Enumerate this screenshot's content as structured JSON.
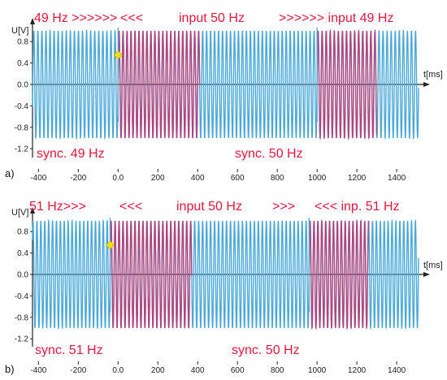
{
  "colors": {
    "wave": "#4aa8d8",
    "wave_highlight": "#b0457e",
    "annotation": "#e8173c",
    "marker": "#f3e01a",
    "axis": "#222222"
  },
  "chart_data": [
    {
      "type": "line",
      "panel_label": "a)",
      "xlabel": "t[ms]",
      "ylabel": "U[V]",
      "xlim": [
        -430,
        1510
      ],
      "ylim": [
        -1.3,
        1.12
      ],
      "xticks": [
        -400,
        -200,
        0.0,
        200,
        400,
        600,
        800,
        1000,
        1200,
        1400
      ],
      "xtick_labels": [
        "-400",
        "-200",
        "0.0",
        "200",
        "400",
        "600",
        "800",
        "1000",
        "1200",
        "1400"
      ],
      "yticks": [
        0.8,
        0.4,
        0.0,
        -0.4,
        -0.8,
        -1.2
      ],
      "ytick_labels": [
        "0.8",
        "0.4",
        "0.0",
        "-0.4",
        "-0.8",
        "-1.2"
      ],
      "series": [
        {
          "amplitude": 1.0,
          "segments": [
            {
              "t_start": -430,
              "t_end": 0,
              "frequency_hz": 49,
              "phase_ref_ms": 0
            },
            {
              "t_start": 0,
              "t_end": 1000,
              "frequency_hz": 50,
              "phase_ref_ms": 0
            },
            {
              "t_start": 1000,
              "t_end": 1510,
              "frequency_hz": 49,
              "phase_ref_ms": 1000
            }
          ]
        }
      ],
      "highlight_ranges_ms": [
        [
          0,
          410
        ],
        [
          1000,
          1300
        ]
      ],
      "markers": [
        {
          "x": 0,
          "y": 0.55,
          "shape": "diamond"
        }
      ],
      "vertical_lines_ms": [
        0,
        1000
      ],
      "annotations": {
        "top_left": "49 Hz >>>>>>",
        "top_left_arrows": "<<<",
        "top_mid": "input 50 Hz",
        "top_right": ">>>>>> input 49 Hz",
        "bottom_left": "sync. 49 Hz",
        "bottom_mid": "sync. 50 Hz"
      }
    },
    {
      "type": "line",
      "panel_label": "b)",
      "xlabel": "t[ms]",
      "ylabel": "U[V]",
      "xlim": [
        -430,
        1510
      ],
      "ylim": [
        -1.3,
        1.12
      ],
      "xticks": [
        -400,
        -200,
        0.0,
        200,
        400,
        600,
        800,
        1000,
        1200,
        1400
      ],
      "xtick_labels": [
        "-400",
        "-200",
        "0.0",
        "200",
        "400",
        "600",
        "800",
        "1000",
        "1200",
        "1400"
      ],
      "yticks": [
        0.8,
        0.4,
        0.0,
        -0.4,
        -0.8,
        -1.2
      ],
      "ytick_labels": [
        "0.8",
        "0.4",
        "0.0",
        "-0.4",
        "-0.8",
        "-1.2"
      ],
      "series": [
        {
          "amplitude": 1.0,
          "segments": [
            {
              "t_start": -430,
              "t_end": -40,
              "frequency_hz": 51,
              "phase_ref_ms": -40
            },
            {
              "t_start": -40,
              "t_end": 960,
              "frequency_hz": 50,
              "phase_ref_ms": -40
            },
            {
              "t_start": 960,
              "t_end": 1510,
              "frequency_hz": 51,
              "phase_ref_ms": 960
            }
          ]
        }
      ],
      "highlight_ranges_ms": [
        [
          -40,
          370
        ],
        [
          960,
          1260
        ]
      ],
      "markers": [
        {
          "x": -40,
          "y": 0.55,
          "shape": "diamond"
        }
      ],
      "vertical_lines_ms": [
        -40,
        960
      ],
      "annotations": {
        "top_left": "51 Hz>>>",
        "top_left_arrows": "<<<",
        "top_mid": "input 50 Hz",
        "top_right": ">>>",
        "top_right2": "<<< inp. 51 Hz",
        "bottom_left": "sync. 51 Hz",
        "bottom_mid": "sync. 50 Hz"
      }
    }
  ]
}
